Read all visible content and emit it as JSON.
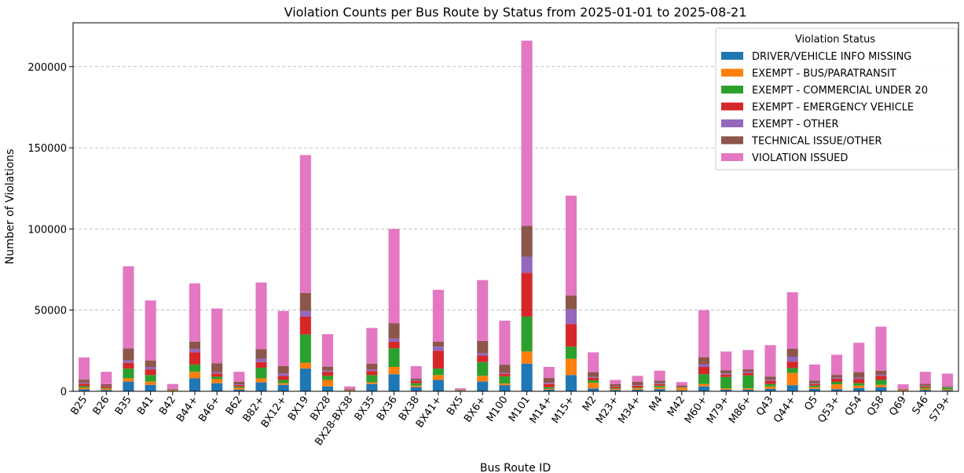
{
  "chart_data": {
    "type": "bar",
    "stacked": true,
    "title": "Violation Counts per Bus Route by Status from 2025-01-01 to 2025-08-21",
    "xlabel": "Bus Route ID",
    "ylabel": "Number of Violations",
    "ylim": [
      0,
      227000
    ],
    "yticks": [
      0,
      50000,
      100000,
      150000,
      200000
    ],
    "grid": "y-dashed",
    "legend_title": "Violation Status",
    "legend_position": "top-right",
    "categories": [
      "B25",
      "B26",
      "B35",
      "B41",
      "B42",
      "B44+",
      "B46+",
      "B62",
      "B82+",
      "BX12+",
      "BX19",
      "BX28",
      "BX28-BX38",
      "BX35",
      "BX36",
      "BX38",
      "BX41+",
      "BX5",
      "BX6+",
      "M100",
      "M101",
      "M14+",
      "M15+",
      "M2",
      "M23+",
      "M34+",
      "M4",
      "M42",
      "M60+",
      "M79+",
      "M86+",
      "Q43",
      "Q44+",
      "Q5",
      "Q53+",
      "Q54",
      "Q58",
      "Q69",
      "S46",
      "S79+"
    ],
    "series": [
      {
        "name": "DRIVER/VEHICLE INFO MISSING",
        "color": "#1f77b4",
        "values": [
          1200,
          800,
          6000,
          4000,
          300,
          8000,
          5000,
          1000,
          5500,
          4000,
          14000,
          3000,
          300,
          4500,
          10500,
          2500,
          7000,
          200,
          6000,
          3800,
          17000,
          1000,
          10000,
          1800,
          800,
          1000,
          1300,
          600,
          3000,
          1000,
          1000,
          1500,
          3800,
          1500,
          1300,
          2000,
          2500,
          300,
          900,
          600
        ]
      },
      {
        "name": "EXEMPT - BUS/PARATRANSIT",
        "color": "#ff7f0e",
        "values": [
          1000,
          800,
          2000,
          2000,
          300,
          4000,
          2500,
          1000,
          2500,
          1000,
          3500,
          4000,
          300,
          1000,
          4500,
          1000,
          3000,
          200,
          3500,
          1000,
          7500,
          500,
          10000,
          3500,
          600,
          800,
          1200,
          1500,
          1500,
          800,
          800,
          1500,
          7500,
          1000,
          3000,
          1500,
          1500,
          300,
          800,
          500
        ]
      },
      {
        "name": "EXEMPT - COMMERCIAL UNDER 20",
        "color": "#2ca02c",
        "values": [
          1000,
          500,
          6000,
          4000,
          200,
          4500,
          1500,
          800,
          6500,
          2000,
          17500,
          2500,
          200,
          4500,
          11500,
          1500,
          4000,
          200,
          8500,
          4500,
          21500,
          1000,
          7500,
          1500,
          500,
          500,
          1000,
          300,
          6000,
          7000,
          8000,
          1500,
          3000,
          1000,
          1500,
          1500,
          3000,
          200,
          800,
          1200
        ]
      },
      {
        "name": "EXEMPT - EMERGENCY VEHICLE",
        "color": "#d62728",
        "values": [
          1500,
          800,
          3500,
          3500,
          200,
          7500,
          2000,
          1000,
          3500,
          2500,
          11000,
          2500,
          300,
          2500,
          4000,
          1500,
          11000,
          200,
          4000,
          1500,
          27000,
          2000,
          14000,
          1500,
          800,
          1200,
          1000,
          300,
          4500,
          1500,
          1500,
          2000,
          4000,
          1000,
          2000,
          2500,
          2500,
          300,
          700,
          300
        ]
      },
      {
        "name": "EXEMPT - OTHER",
        "color": "#9467bd",
        "values": [
          700,
          300,
          1500,
          1500,
          100,
          2000,
          800,
          500,
          2000,
          1500,
          3500,
          700,
          100,
          1000,
          2000,
          500,
          2500,
          100,
          1500,
          600,
          10000,
          700,
          9000,
          500,
          300,
          300,
          500,
          200,
          1500,
          700,
          800,
          600,
          3000,
          500,
          600,
          800,
          700,
          100,
          300,
          200
        ]
      },
      {
        "name": "TECHNICAL ISSUE/OTHER",
        "color": "#8c564b",
        "values": [
          1800,
          1200,
          7500,
          4000,
          400,
          4500,
          5500,
          1500,
          6000,
          4500,
          11000,
          2500,
          300,
          3500,
          9500,
          900,
          3000,
          200,
          7500,
          5000,
          19000,
          3000,
          8500,
          3000,
          1500,
          2000,
          1500,
          700,
          4500,
          2000,
          1500,
          2000,
          5000,
          1500,
          1700,
          3500,
          2500,
          300,
          1200,
          300
        ]
      },
      {
        "name": "VIOLATION ISSUED",
        "color": "#e377c2",
        "values": [
          13600,
          7600,
          50500,
          37000,
          3000,
          36000,
          33700,
          6200,
          41000,
          34000,
          85000,
          20000,
          1500,
          22000,
          58000,
          7600,
          32000,
          800,
          37500,
          27100,
          114000,
          6800,
          61500,
          12200,
          2500,
          3700,
          6200,
          2100,
          29000,
          11500,
          11800,
          19300,
          34700,
          10000,
          12400,
          18100,
          27100,
          2800,
          7300,
          7800
        ]
      }
    ]
  }
}
